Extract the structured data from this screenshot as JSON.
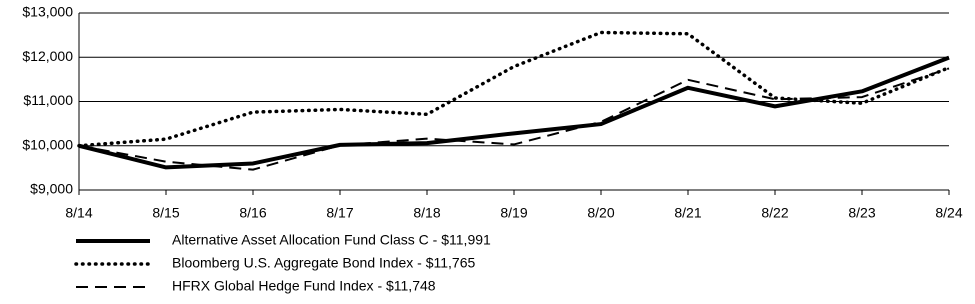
{
  "chart_data": {
    "type": "line",
    "categories": [
      "8/14",
      "8/15",
      "8/16",
      "8/17",
      "8/18",
      "8/19",
      "8/20",
      "8/21",
      "8/22",
      "8/23",
      "8/24"
    ],
    "series": [
      {
        "name": "Alternative Asset Allocation Fund Class C - $11,991",
        "color": "#000000",
        "style": "solid",
        "values": [
          10000,
          9510,
          9600,
          10020,
          10060,
          10280,
          10490,
          11310,
          10890,
          11230,
          11991
        ]
      },
      {
        "name": "Bloomberg U.S. Aggregate Bond Index - $11,765",
        "color": "#000000",
        "style": "dotted",
        "values": [
          10000,
          10150,
          10760,
          10820,
          10710,
          11790,
          12560,
          12530,
          11080,
          10960,
          11765
        ]
      },
      {
        "name": "HFRX Global Hedge Fund Index - $11,748",
        "color": "#000000",
        "style": "dashed",
        "values": [
          10000,
          9640,
          9460,
          10010,
          10160,
          10030,
          10540,
          11490,
          11050,
          11100,
          11748
        ]
      }
    ],
    "ylim": [
      9000,
      13000
    ],
    "yticks": [
      {
        "value": 9000,
        "label": "$9,000"
      },
      {
        "value": 10000,
        "label": "$10,000"
      },
      {
        "value": 11000,
        "label": "$11,000"
      },
      {
        "value": 12000,
        "label": "$12,000"
      },
      {
        "value": 13000,
        "label": "$13,000"
      }
    ],
    "grid": true
  }
}
